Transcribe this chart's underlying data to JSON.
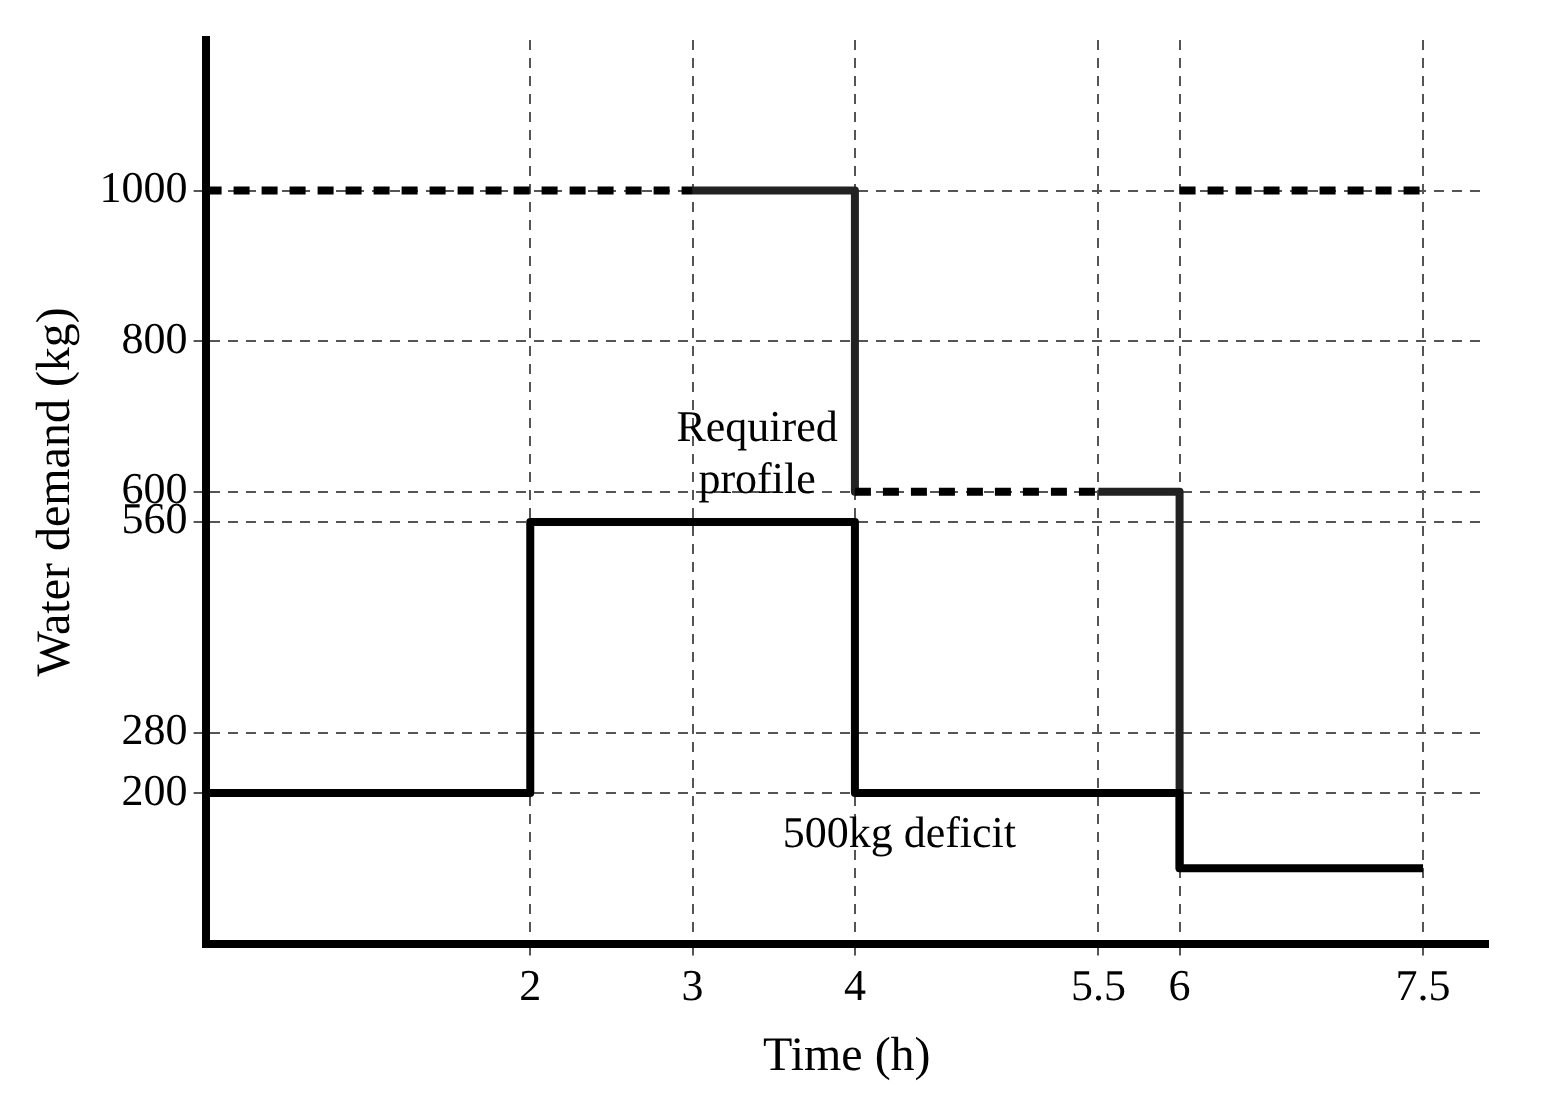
{
  "chart_data": {
    "type": "line",
    "xlabel": "Time (h)",
    "ylabel": "Water demand (kg)",
    "xlim": [
      0,
      7.9
    ],
    "ylim": [
      0,
      1200
    ],
    "xticks": [
      2,
      3,
      4,
      5.5,
      6,
      7.5
    ],
    "yticks": [
      200,
      280,
      560,
      600,
      800,
      1000
    ],
    "grid": true,
    "legend": false,
    "marker": "none",
    "series": [
      {
        "color": "#000000",
        "line_style": "solid",
        "x": [
          0,
          2,
          2,
          4,
          4,
          6,
          6,
          7.5
        ],
        "values": [
          200,
          200,
          560,
          560,
          200,
          200,
          100,
          100
        ]
      },
      {
        "color": "#000000",
        "line_style": "dashed",
        "x": [
          0,
          3,
          3.5,
          4,
          5.5,
          5.8,
          6,
          7.5
        ],
        "values": [
          1000,
          1000,
          null,
          600,
          600,
          null,
          1000,
          1000
        ]
      },
      {
        "color": "#222222",
        "line_style": "solid",
        "x": [
          3,
          4,
          4,
          5,
          5.5,
          6,
          6
        ],
        "values": [
          1000,
          1000,
          600,
          null,
          600,
          600,
          100
        ]
      }
    ],
    "annotations": [
      "Required profile",
      "500kg deficit"
    ]
  }
}
